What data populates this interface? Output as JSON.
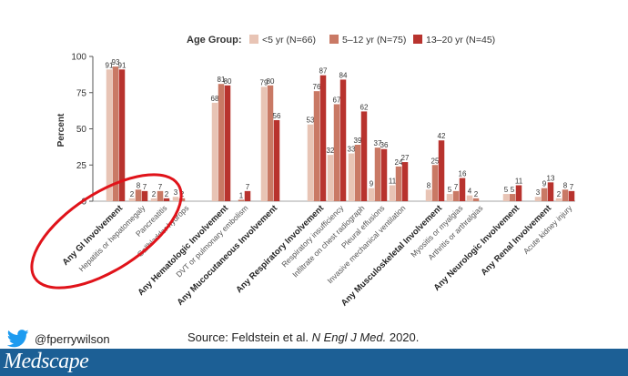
{
  "chart_data": {
    "type": "bar",
    "ylabel": "Percent",
    "ylim": [
      0,
      100
    ],
    "yticks": [
      0,
      25,
      50,
      75,
      100
    ],
    "grid": false,
    "legend": {
      "title": "Age Group:",
      "placement": "top-center"
    },
    "series": [
      {
        "name": "<5 yr (N=66)",
        "color": "#e8c4b5"
      },
      {
        "name": "5–12 yr (N=75)",
        "color": "#c97965"
      },
      {
        "name": "13–20 yr (N=45)",
        "color": "#b8332e"
      }
    ],
    "groups": [
      {
        "label": "Any GI Involvement",
        "bold": true,
        "values": [
          91,
          93,
          91
        ]
      },
      {
        "label": "Hepatitis or hepatomegaly",
        "bold": false,
        "values": [
          2,
          8,
          7
        ]
      },
      {
        "label": "Pancreatitis",
        "bold": false,
        "values": [
          2,
          7,
          2
        ]
      },
      {
        "label": "Gallbladder hydrops",
        "bold": false,
        "values": [
          3,
          2,
          null
        ]
      },
      {
        "label": "Any Hematologic Involvement",
        "bold": true,
        "values": [
          68,
          81,
          80
        ]
      },
      {
        "label": "DVT or pulmonary embolism",
        "bold": false,
        "values": [
          null,
          1,
          7
        ]
      },
      {
        "label": "Any Mucocutaneous Involvement",
        "bold": true,
        "values": [
          79,
          80,
          56
        ]
      },
      {
        "label": "Any Respiratory Involvement",
        "bold": true,
        "values": [
          53,
          76,
          87
        ]
      },
      {
        "label": "Respiratory insufficiency",
        "bold": false,
        "values": [
          32,
          67,
          84
        ]
      },
      {
        "label": "Infiltrate on chest radiograph",
        "bold": false,
        "values": [
          33,
          39,
          62
        ]
      },
      {
        "label": "Pleural effusions",
        "bold": false,
        "values": [
          9,
          37,
          36
        ]
      },
      {
        "label": "Invasive mechanical ventilation",
        "bold": false,
        "values": [
          11,
          24,
          27
        ]
      },
      {
        "label": "Any Musculoskeletal Involvement",
        "bold": true,
        "values": [
          8,
          25,
          42
        ]
      },
      {
        "label": "Myositis or myalgias",
        "bold": false,
        "values": [
          5,
          7,
          16
        ]
      },
      {
        "label": "Arthritis or arthralgias",
        "bold": false,
        "values": [
          4,
          2,
          null
        ]
      },
      {
        "label": "Any Neurologic Involvement",
        "bold": true,
        "values": [
          5,
          5,
          11
        ]
      },
      {
        "label": "Any Renal Involvement",
        "bold": true,
        "values": [
          3,
          9,
          13
        ]
      },
      {
        "label": "Acute kidney injury",
        "bold": false,
        "values": [
          2,
          8,
          7
        ]
      }
    ],
    "annotation": {
      "shape": "ellipse",
      "color": "#e0131a",
      "target": "Any GI Involvement"
    }
  },
  "footer": {
    "handle": "@fperrywilson",
    "source_prefix": "Source: Feldstein et al. ",
    "source_journal": "N Engl J Med.",
    "source_year": " 2020.",
    "brand": "Medscape"
  },
  "icons": {
    "social": "twitter-bird-icon"
  }
}
